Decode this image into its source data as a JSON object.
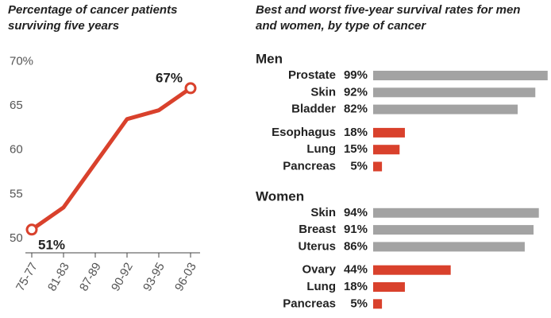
{
  "chart_data": [
    {
      "type": "line",
      "title": "Percentage of cancer patients surviving five years",
      "categories": [
        "75-77",
        "81-83",
        "87-89",
        "90-92",
        "93-95",
        "96-03"
      ],
      "values": [
        51,
        53.5,
        58.5,
        63.5,
        64.5,
        67
      ],
      "value_labels": [
        "51%",
        null,
        null,
        null,
        null,
        "67%"
      ],
      "color": "#d9412c",
      "ylim": [
        49,
        70.5
      ],
      "yticks": [
        50,
        55,
        60,
        65,
        {
          "value": 70,
          "label": "70%"
        }
      ]
    },
    {
      "type": "hbar",
      "title": "Best and worst five-year survival rates for men and women, by type of cancer",
      "xlim": [
        0,
        100
      ],
      "groups": [
        {
          "name": "Men",
          "categories": [
            "Prostate",
            "Skin",
            "Bladder",
            "Esophagus",
            "Lung",
            "Pancreas"
          ],
          "values": [
            99,
            92,
            82,
            18,
            15,
            5
          ],
          "value_labels": [
            "99%",
            "92%",
            "82%",
            "18%",
            "15%",
            "5%"
          ],
          "colors": [
            "#a3a3a3",
            "#a3a3a3",
            "#a3a3a3",
            "#d9412c",
            "#d9412c",
            "#d9412c"
          ]
        },
        {
          "name": "Women",
          "categories": [
            "Skin",
            "Breast",
            "Uterus",
            "Ovary",
            "Lung",
            "Pancreas"
          ],
          "values": [
            94,
            91,
            86,
            44,
            18,
            5
          ],
          "value_labels": [
            "94%",
            "91%",
            "86%",
            "44%",
            "18%",
            "5%"
          ],
          "colors": [
            "#a3a3a3",
            "#a3a3a3",
            "#a3a3a3",
            "#d9412c",
            "#d9412c",
            "#d9412c"
          ]
        }
      ]
    }
  ]
}
